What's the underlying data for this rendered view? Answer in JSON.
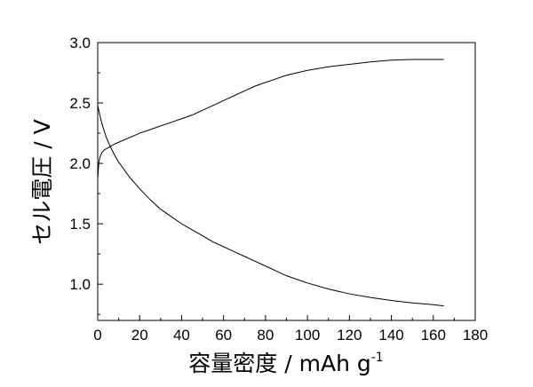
{
  "chart_data": {
    "type": "line",
    "title": "",
    "xlabel": "容量密度 / mAh g",
    "xlabel_superscript": "-1",
    "ylabel": "セル電圧 / V",
    "xlim": [
      0,
      180
    ],
    "ylim": [
      0.7,
      3.0
    ],
    "x_ticks": [
      0,
      20,
      40,
      60,
      80,
      100,
      120,
      140,
      160,
      180
    ],
    "y_ticks": [
      1.0,
      1.5,
      2.0,
      2.5,
      3.0
    ],
    "x_tick_labels": [
      "0",
      "20",
      "40",
      "60",
      "80",
      "100",
      "120",
      "140",
      "160",
      "180"
    ],
    "y_tick_labels": [
      "1.0",
      "1.5",
      "2.0",
      "2.5",
      "3.0"
    ],
    "grid": false,
    "legend": "none",
    "line_color": "#000000",
    "series": [
      {
        "values_x": [
          0,
          0.5,
          1,
          2,
          3,
          5,
          8,
          12,
          16,
          20,
          25,
          30,
          35,
          40,
          45,
          50,
          55,
          60,
          65,
          70,
          75,
          80,
          85,
          90,
          95,
          100,
          110,
          120,
          130,
          140,
          150,
          160,
          165
        ],
        "values_y": [
          1.87,
          2.0,
          2.05,
          2.09,
          2.11,
          2.13,
          2.16,
          2.19,
          2.22,
          2.25,
          2.28,
          2.31,
          2.34,
          2.37,
          2.4,
          2.44,
          2.48,
          2.52,
          2.56,
          2.6,
          2.64,
          2.67,
          2.7,
          2.73,
          2.75,
          2.77,
          2.8,
          2.82,
          2.84,
          2.855,
          2.86,
          2.86,
          2.86
        ]
      },
      {
        "values_x": [
          0,
          1,
          2,
          4,
          6,
          8,
          10,
          15,
          20,
          25,
          30,
          35,
          40,
          45,
          50,
          55,
          60,
          65,
          70,
          75,
          80,
          85,
          90,
          95,
          100,
          110,
          120,
          130,
          140,
          150,
          160,
          165
        ],
        "values_y": [
          2.48,
          2.4,
          2.33,
          2.22,
          2.14,
          2.07,
          2.01,
          1.89,
          1.79,
          1.7,
          1.62,
          1.56,
          1.5,
          1.45,
          1.4,
          1.35,
          1.31,
          1.27,
          1.23,
          1.19,
          1.15,
          1.11,
          1.07,
          1.04,
          1.01,
          0.96,
          0.92,
          0.89,
          0.865,
          0.845,
          0.83,
          0.82
        ]
      }
    ]
  }
}
